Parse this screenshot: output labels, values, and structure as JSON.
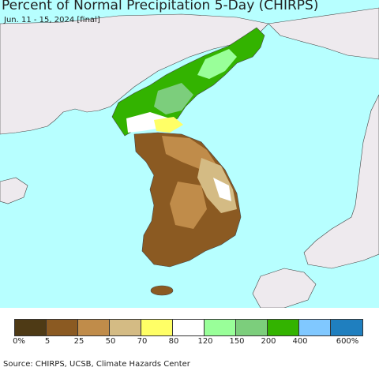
{
  "title": "Percent of Normal Precipitation 5-Day (CHIRPS)",
  "subtitle": "Jun. 11 - 15, 2024 [final]",
  "source": "Source: CHIRPS, UCSB, Climate Hazards Center",
  "legend": {
    "colors": [
      "#4e3a15",
      "#8b5a22",
      "#c08c4a",
      "#d4bb84",
      "#ffff66",
      "#ffffff",
      "#99ff99",
      "#7cce7c",
      "#33b300",
      "#80c8ff",
      "#1f7fbf"
    ],
    "labels": [
      "0%",
      "5",
      "25",
      "50",
      "70",
      "80",
      "120",
      "150",
      "200",
      "400",
      "600%"
    ]
  },
  "colors": {
    "ocean": "#b7ffff",
    "land_other": "#eeeaee",
    "north_green": "#33b300",
    "south_brown": "#8b5a22"
  }
}
